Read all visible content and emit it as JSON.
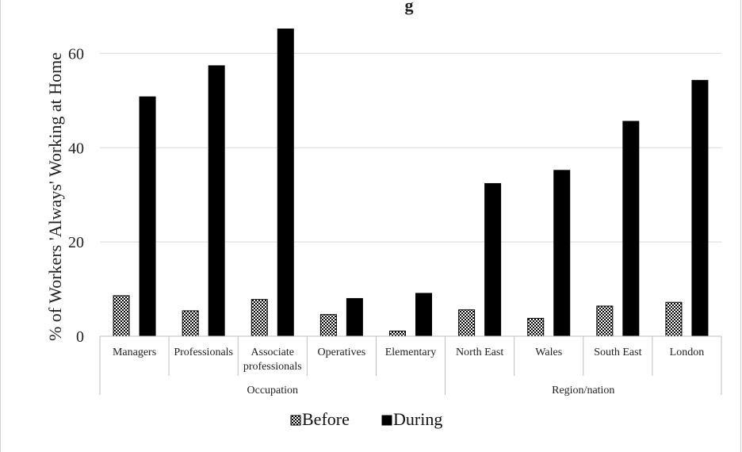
{
  "chart_data": {
    "type": "bar",
    "title": "g",
    "ylabel": "% of Workers 'Always' Working at Home",
    "ylim": [
      0,
      70
    ],
    "yticks": [
      0,
      20,
      40,
      60
    ],
    "grid": true,
    "legend_position": "bottom",
    "groups": [
      {
        "label": "Occupation",
        "categories": [
          "Managers",
          "Professionals",
          "Associate professionals",
          "Operatives",
          "Elementary"
        ]
      },
      {
        "label": "Region/nation",
        "categories": [
          "North East",
          "Wales",
          "South East",
          "London"
        ]
      }
    ],
    "categories": [
      "Managers",
      "Professionals",
      "Associate professionals",
      "Operatives",
      "Elementary",
      "North East",
      "Wales",
      "South East",
      "London"
    ],
    "series": [
      {
        "name": "Before",
        "pattern": "checker",
        "color": "#000000",
        "values": [
          8.6,
          5.4,
          7.8,
          4.6,
          1.1,
          5.6,
          3.8,
          6.4,
          7.2
        ]
      },
      {
        "name": "During",
        "color": "#000000",
        "values": [
          50.8,
          57.4,
          65.2,
          8.0,
          9.1,
          32.4,
          35.2,
          45.6,
          54.3
        ]
      }
    ]
  }
}
